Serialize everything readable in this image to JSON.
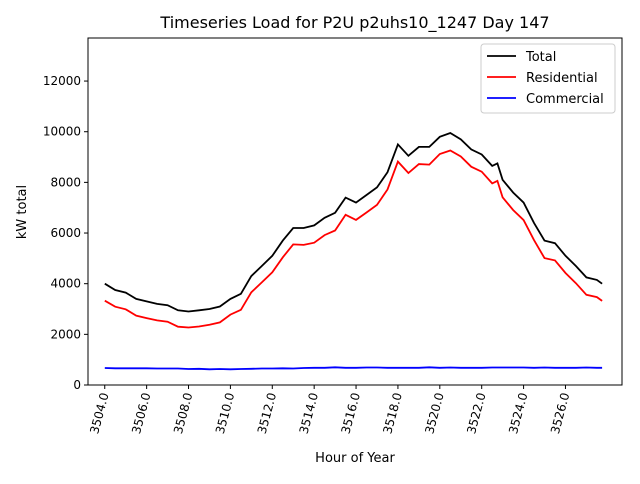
{
  "chart_data": {
    "type": "line",
    "title": "Timeseries Load for P2U p2uhs10_1247  Day 147",
    "xlabel": "Hour of Year",
    "ylabel": "kW total",
    "xlim": [
      3503.2,
      3528.7
    ],
    "ylim": [
      0,
      13700
    ],
    "yticks": [
      0,
      2000,
      4000,
      6000,
      8000,
      10000,
      12000
    ],
    "xticks": [
      3504,
      3506,
      3508,
      3510,
      3512,
      3514,
      3516,
      3518,
      3520,
      3522,
      3524,
      3526
    ],
    "xtick_labels": [
      "3504.0",
      "3506.0",
      "3508.0",
      "3510.0",
      "3512.0",
      "3514.0",
      "3516.0",
      "3518.0",
      "3520.0",
      "3522.0",
      "3524.0",
      "3526.0"
    ],
    "ytick_labels": [
      "0",
      "2000",
      "4000",
      "6000",
      "8000",
      "10000",
      "12000"
    ],
    "legend_position": "top-right",
    "x": [
      3504,
      3504.5,
      3505,
      3505.5,
      3506,
      3506.5,
      3507,
      3507.5,
      3508,
      3508.5,
      3509,
      3509.5,
      3510,
      3510.5,
      3511,
      3511.5,
      3512,
      3512.5,
      3513,
      3513.5,
      3514,
      3514.5,
      3515,
      3515.5,
      3516,
      3516.5,
      3517,
      3517.5,
      3518,
      3518.5,
      3519,
      3519.5,
      3520,
      3520.5,
      3521,
      3521.5,
      3522,
      3522.5,
      3522.75,
      3523,
      3523.5,
      3524,
      3524.5,
      3525,
      3525.5,
      3526,
      3526.5,
      3527,
      3527.5,
      3527.75
    ],
    "series": [
      {
        "name": "Total",
        "color": "#000000",
        "values": [
          4000,
          3750,
          3650,
          3400,
          3300,
          3200,
          3150,
          2950,
          2900,
          2950,
          3000,
          3100,
          3400,
          3600,
          4300,
          4700,
          5100,
          5700,
          6200,
          6200,
          6300,
          6600,
          6800,
          7400,
          7200,
          7500,
          7800,
          8400,
          9500,
          9050,
          9400,
          9400,
          9800,
          9950,
          9700,
          9300,
          9100,
          8650,
          8750,
          8100,
          7600,
          7200,
          6400,
          5700,
          5600,
          5100,
          4700,
          4250,
          4150,
          4000
        ]
      },
      {
        "name": "Residential",
        "color": "#ff0000",
        "values": [
          3330,
          3090,
          2990,
          2740,
          2640,
          2550,
          2500,
          2300,
          2270,
          2310,
          2380,
          2470,
          2780,
          2970,
          3660,
          4050,
          4450,
          5040,
          5550,
          5530,
          5620,
          5920,
          6100,
          6720,
          6520,
          6810,
          7110,
          7720,
          8820,
          8370,
          8720,
          8700,
          9120,
          9260,
          9020,
          8620,
          8420,
          7960,
          8060,
          7410,
          6910,
          6510,
          5720,
          5010,
          4920,
          4420,
          4020,
          3560,
          3470,
          3320
        ]
      },
      {
        "name": "Commercial",
        "color": "#0000ff",
        "values": [
          670,
          660,
          660,
          660,
          660,
          650,
          650,
          650,
          630,
          640,
          620,
          630,
          620,
          630,
          640,
          650,
          650,
          660,
          650,
          670,
          680,
          680,
          700,
          680,
          680,
          690,
          690,
          680,
          680,
          680,
          680,
          700,
          680,
          690,
          680,
          680,
          680,
          690,
          690,
          690,
          690,
          690,
          680,
          690,
          680,
          680,
          680,
          690,
          680,
          680
        ]
      }
    ]
  }
}
